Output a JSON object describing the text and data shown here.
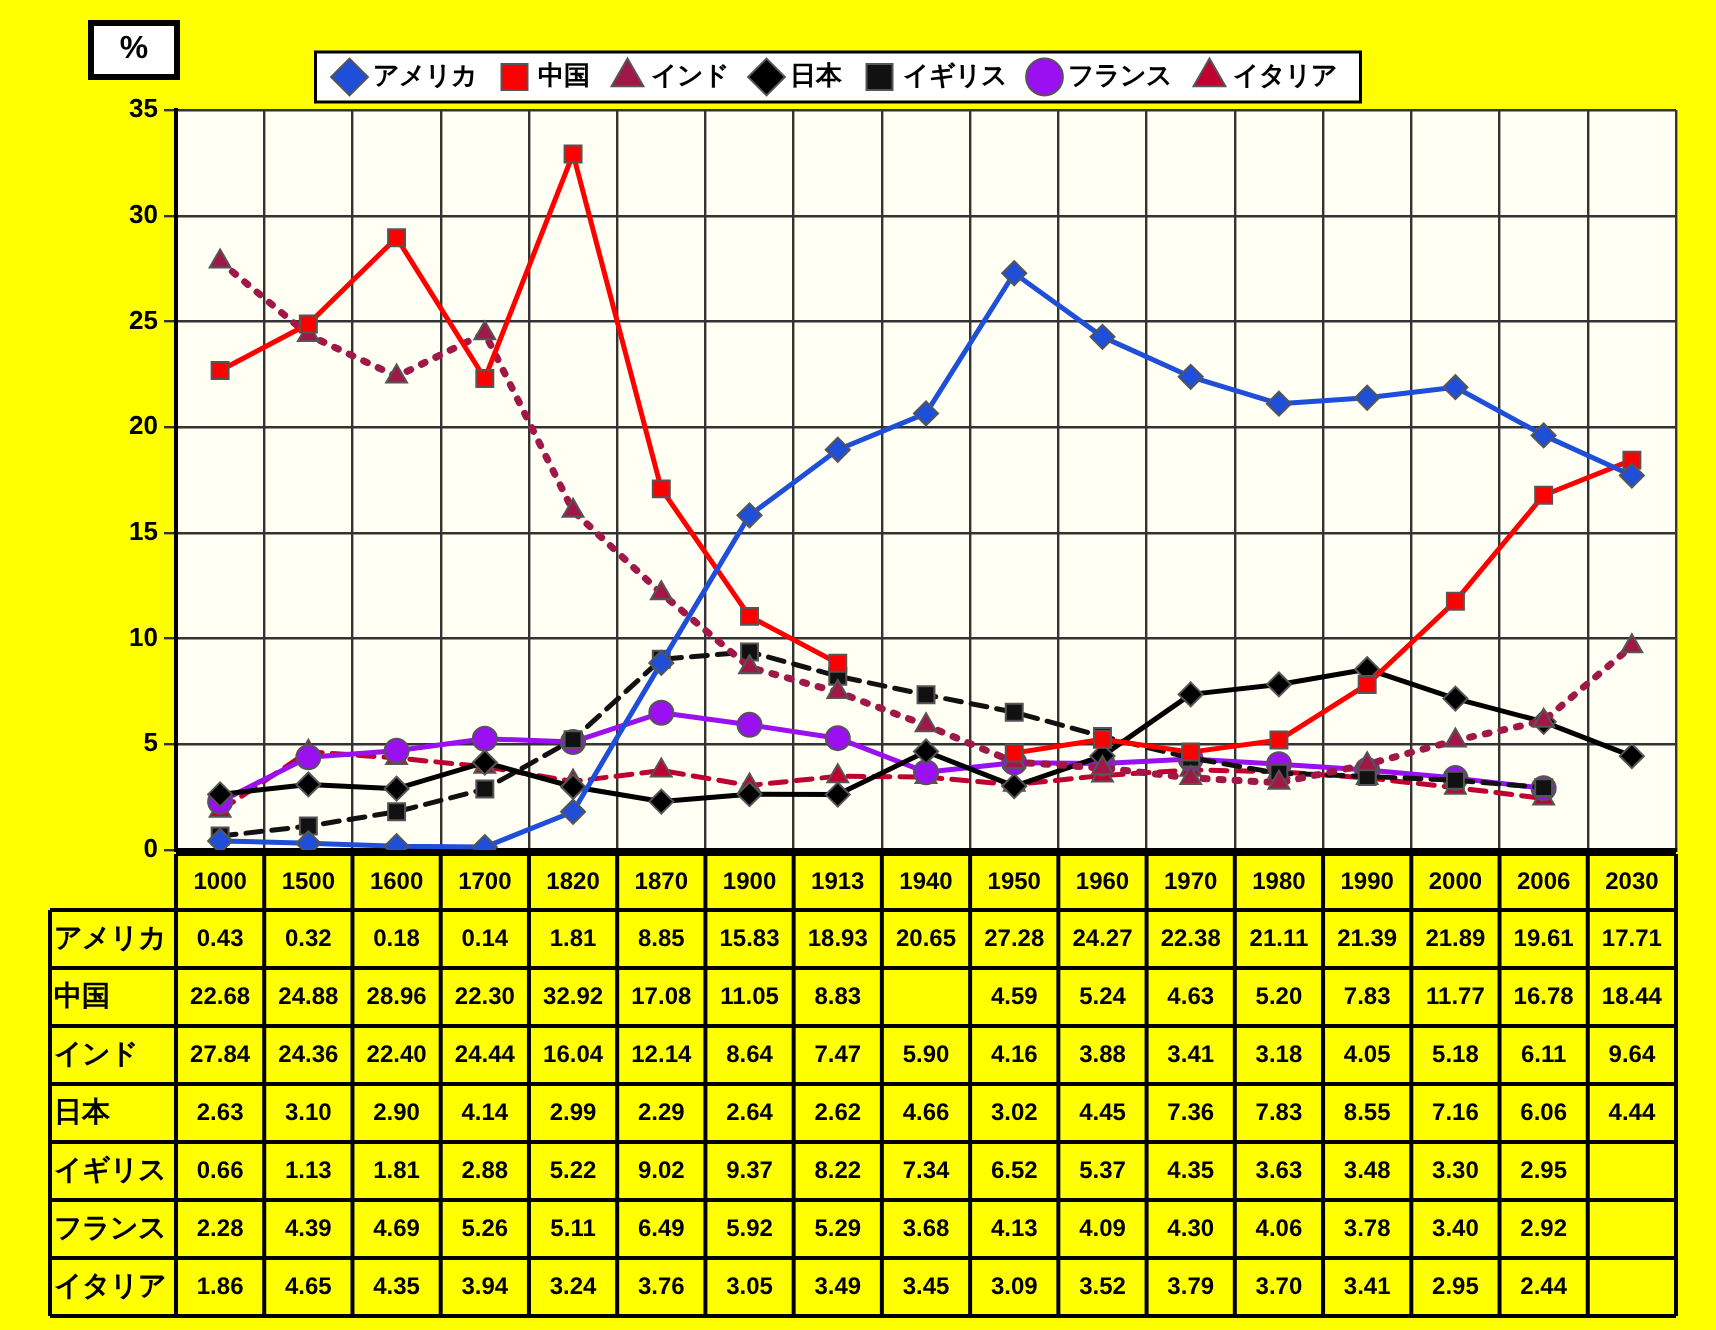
{
  "chart_data": {
    "type": "line",
    "ylabel": "%",
    "categories": [
      "1000",
      "1500",
      "1600",
      "1700",
      "1820",
      "1870",
      "1900",
      "1913",
      "1940",
      "1950",
      "1960",
      "1970",
      "1980",
      "1990",
      "2000",
      "2006",
      "2030"
    ],
    "ylim": [
      0,
      35
    ],
    "yticks": [
      0,
      5,
      10,
      15,
      20,
      25,
      30,
      35
    ],
    "grid": true,
    "legend": "top",
    "data_labels": true,
    "series": [
      {
        "name": "アメリカ",
        "color": "#1f4fd8",
        "marker": "diamond",
        "line_style": "solid",
        "values": [
          0.43,
          0.32,
          0.18,
          0.14,
          1.81,
          8.85,
          15.83,
          18.93,
          20.65,
          27.28,
          24.27,
          22.38,
          21.11,
          21.39,
          21.89,
          19.61,
          17.71
        ],
        "value_labels": [
          "0.43",
          "0.32",
          "0.18",
          "0.14",
          "1.81",
          "8.85",
          "15.83",
          "18.93",
          "20.65",
          "27.28",
          "24.27",
          "22.38",
          "21.11",
          "21.39",
          "21.89",
          "19.61",
          "17.71"
        ]
      },
      {
        "name": "中国",
        "color": "#ff0000",
        "marker": "square",
        "line_style": "solid",
        "values": [
          22.68,
          24.88,
          28.96,
          22.3,
          32.92,
          17.08,
          11.05,
          8.83,
          null,
          4.59,
          5.24,
          4.63,
          5.2,
          7.83,
          11.77,
          16.78,
          18.44
        ],
        "value_labels": [
          "22.68",
          "24.88",
          "28.96",
          "22.30",
          "32.92",
          "17.08",
          "11.05",
          "8.83",
          null,
          "4.59",
          "5.24",
          "4.63",
          "5.20",
          "7.83",
          "11.77",
          "16.78",
          "18.44"
        ]
      },
      {
        "name": "インド",
        "color": "#a01848",
        "marker": "triangle",
        "line_style": "dotted",
        "values": [
          27.84,
          24.36,
          22.4,
          24.44,
          16.04,
          12.14,
          8.64,
          7.47,
          5.9,
          4.16,
          3.88,
          3.41,
          3.18,
          4.05,
          5.18,
          6.11,
          9.64
        ],
        "value_labels": [
          "27.84",
          "24.36",
          "22.40",
          "24.44",
          "16.04",
          "12.14",
          "8.64",
          "7.47",
          "5.90",
          "4.16",
          "3.88",
          "3.41",
          "3.18",
          "4.05",
          "5.18",
          "6.11",
          "9.64"
        ]
      },
      {
        "name": "日本",
        "color": "#000000",
        "marker": "diamond",
        "line_style": "solid",
        "values": [
          2.63,
          3.1,
          2.9,
          4.14,
          2.99,
          2.29,
          2.64,
          2.62,
          4.66,
          3.02,
          4.45,
          7.36,
          7.83,
          8.55,
          7.16,
          6.06,
          4.44
        ],
        "value_labels": [
          "2.63",
          "3.10",
          "2.90",
          "4.14",
          "2.99",
          "2.29",
          "2.64",
          "2.62",
          "4.66",
          "3.02",
          "4.45",
          "7.36",
          "7.83",
          "8.55",
          "7.16",
          "6.06",
          "4.44"
        ]
      },
      {
        "name": "イギリス",
        "color": "#111111",
        "marker": "square",
        "line_style": "dashed",
        "values": [
          0.66,
          1.13,
          1.81,
          2.88,
          5.22,
          9.02,
          9.37,
          8.22,
          7.34,
          6.52,
          5.37,
          4.35,
          3.63,
          3.48,
          3.3,
          2.95,
          null
        ],
        "value_labels": [
          "0.66",
          "1.13",
          "1.81",
          "2.88",
          "5.22",
          "9.02",
          "9.37",
          "8.22",
          "7.34",
          "6.52",
          "5.37",
          "4.35",
          "3.63",
          "3.48",
          "3.30",
          "2.95",
          null
        ]
      },
      {
        "name": "フランス",
        "color": "#9a10f0",
        "marker": "circle",
        "line_style": "solid",
        "values": [
          2.28,
          4.39,
          4.69,
          5.26,
          5.11,
          6.49,
          5.92,
          5.29,
          3.68,
          4.13,
          4.09,
          4.3,
          4.06,
          3.78,
          3.4,
          2.92,
          null
        ],
        "value_labels": [
          "2.28",
          "4.39",
          "4.69",
          "5.26",
          "5.11",
          "6.49",
          "5.92",
          "5.29",
          "3.68",
          "4.13",
          "4.09",
          "4.30",
          "4.06",
          "3.78",
          "3.40",
          "2.92",
          null
        ]
      },
      {
        "name": "イタリア",
        "color": "#c00030",
        "marker": "triangle",
        "line_style": "dashed",
        "values": [
          1.86,
          4.65,
          4.35,
          3.94,
          3.24,
          3.76,
          3.05,
          3.49,
          3.45,
          3.09,
          3.52,
          3.79,
          3.7,
          3.41,
          2.95,
          2.44,
          null
        ],
        "value_labels": [
          "1.86",
          "4.65",
          "4.35",
          "3.94",
          "3.24",
          "3.76",
          "3.05",
          "3.49",
          "3.45",
          "3.09",
          "3.52",
          "3.79",
          "3.70",
          "3.41",
          "2.95",
          "2.44",
          null
        ]
      }
    ]
  }
}
